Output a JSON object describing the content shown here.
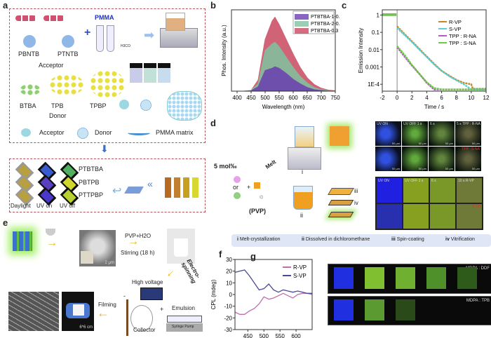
{
  "panels": {
    "a": "a",
    "b": "b",
    "c": "c",
    "d": "d",
    "e": "e",
    "f": "f",
    "g": "g"
  },
  "panel_a": {
    "pmma": "PMMA",
    "pbntb": "PBNTB",
    "ptntb": "PTNTB",
    "acceptor": "Acceptor",
    "btba": "BTBA",
    "tpb": "TPB",
    "tpbp": "TPBP",
    "donor": "Donor",
    "formula": "H3CO",
    "legend_acceptor": "Acceptor",
    "legend_donor": "Donor",
    "legend_matrix": "PMMA matrix",
    "rows": [
      "PTBTBA",
      "PBTPB",
      "PTTPBP"
    ],
    "cols": [
      "Daylight",
      "UV on",
      "UV off"
    ],
    "colors": {
      "frame": "#b5555a",
      "arrow": "#3b6fc8"
    }
  },
  "panel_d": {
    "dopant": "5 mol‰",
    "or": "or",
    "plus": "+",
    "melt": "Melt",
    "pvp": "(PVP)",
    "step_i": "i",
    "step_ii": "ii",
    "step_iii": "iii",
    "step_iv": "iv",
    "micro_labels": [
      "UV ON",
      "UV OFF 1 s",
      "6 s",
      "5 s TPP : R-NA"
    ],
    "micro_bottom": "TPP : S-NA",
    "scale": "50 μm",
    "photo_labels": [
      "UV ON",
      "UV OFF 2 s",
      "6 s",
      "10 s R-VP"
    ],
    "photo_bottom": "S-VP",
    "legend": [
      {
        "num": "i",
        "text": "Melt-crystallization"
      },
      {
        "num": "ii",
        "text": "Dissolved in dichloromethane"
      },
      {
        "num": "iii",
        "text": "Spin-coating"
      },
      {
        "num": "iv",
        "text": "Vitrification"
      }
    ]
  },
  "panel_e": {
    "pvp": "PVP+H2O",
    "stirring": "Stirring (18 h)",
    "scale": "2 μm",
    "electro": "Electro-spinning",
    "high_voltage": "High voltage",
    "minus": "-",
    "plus": "+",
    "emulsion": "Emulsion",
    "syringe": "Syringe Pump",
    "collector": "Collector",
    "filming": "Filming",
    "size": "6*6 cm"
  },
  "panel_g": {
    "row1": "MDPA : DDF",
    "row2": "MDPA : TPB"
  },
  "chart_data": [
    {
      "id": "b",
      "type": "area",
      "xlabel": "Wavelength (nm)",
      "ylabel": "Phos. Intensity (a.u.)",
      "xlim": [
        380,
        750
      ],
      "ylim": [
        0,
        1.1
      ],
      "xticks": [
        400,
        450,
        500,
        550,
        600,
        650,
        700,
        750
      ],
      "stacked": true,
      "x": [
        400,
        425,
        450,
        475,
        500,
        525,
        535,
        550,
        575,
        600,
        625,
        650,
        675,
        700,
        725,
        750
      ],
      "series": [
        {
          "name": "PTBTBA-1-0.3",
          "color": "#6a3fb0",
          "values": [
            0,
            0,
            0.005,
            0.06,
            0.28,
            0.31,
            0.33,
            0.31,
            0.24,
            0.16,
            0.1,
            0.05,
            0.02,
            0.01,
            0,
            0
          ]
        },
        {
          "name": "PTBTBA-2-0.3",
          "color": "#7fc4a0",
          "values": [
            0,
            0,
            0.01,
            0.1,
            0.55,
            0.64,
            0.66,
            0.6,
            0.46,
            0.32,
            0.2,
            0.11,
            0.05,
            0.02,
            0.01,
            0
          ]
        },
        {
          "name": "PTBTBA-0.3",
          "color": "#c9485f",
          "values": [
            0,
            0,
            0.01,
            0.15,
            0.7,
            0.95,
            1.0,
            0.9,
            0.7,
            0.5,
            0.32,
            0.18,
            0.09,
            0.04,
            0.015,
            0.005
          ]
        }
      ],
      "legend": "top-right"
    },
    {
      "id": "c",
      "type": "line",
      "xlabel": "Time / s",
      "ylabel": "Emission Intensity",
      "xlim": [
        -2,
        12
      ],
      "ylim": [
        4e-05,
        2
      ],
      "yscale": "log",
      "xticks": [
        -2,
        0,
        2,
        4,
        6,
        8,
        10,
        12
      ],
      "yticks": [
        {
          "v": 1,
          "l": "1"
        },
        {
          "v": 0.1,
          "l": "0.1"
        },
        {
          "v": 0.01,
          "l": "0.01"
        },
        {
          "v": 0.001,
          "l": "0.001"
        },
        {
          "v": 0.0001,
          "l": "1E-4"
        }
      ],
      "x_pre": [
        -2,
        -0.1
      ],
      "x": [
        0,
        1,
        2,
        3,
        4,
        5,
        6,
        7,
        8,
        9,
        10,
        10.2,
        12
      ],
      "series": [
        {
          "name": "R-VP",
          "color": "#c8882a",
          "pre": [
            1.1,
            1.1
          ],
          "values": [
            0.22,
            0.08,
            0.03,
            0.011,
            0.004,
            0.0015,
            0.0006,
            0.00032,
            0.00018,
            0.00012,
            0.0001,
            5.5e-05,
            5.5e-05
          ]
        },
        {
          "name": "S-VP",
          "color": "#5cd0d8",
          "pre": [
            1.0,
            1.0
          ],
          "values": [
            0.18,
            0.07,
            0.028,
            0.01,
            0.0038,
            0.0014,
            0.0006,
            0.0003,
            0.00017,
            0.0001,
            5e-05,
            5e-05,
            5e-05
          ]
        },
        {
          "name": "TPP : R-NA",
          "color": "#b05cc0",
          "pre": [
            1.0,
            1.0
          ],
          "values": [
            0.014,
            0.004,
            0.0012,
            0.0004,
            0.00012,
            5e-05,
            5e-05,
            5e-05,
            5e-05,
            5e-05,
            5e-05,
            5e-05,
            5e-05
          ]
        },
        {
          "name": "TPP : S-NA",
          "color": "#6ccc40",
          "pre": [
            1.0,
            1.0
          ],
          "values": [
            0.016,
            0.005,
            0.0013,
            0.0004,
            0.00013,
            6e-05,
            5e-05,
            5e-05,
            5e-05,
            5e-05,
            5e-05,
            5e-05,
            5e-05
          ]
        }
      ],
      "legend": "top-right"
    },
    {
      "id": "f",
      "type": "line",
      "xlabel": "Wavelength / nm",
      "ylabel": "CPL (mdeg)",
      "xlim": [
        410,
        650
      ],
      "ylim": [
        -30,
        30
      ],
      "xticks": [
        450,
        500,
        550,
        600
      ],
      "yticks": [
        -30,
        -20,
        -10,
        0,
        10,
        20,
        30
      ],
      "x": [
        410,
        425,
        440,
        455,
        470,
        485,
        500,
        515,
        530,
        545,
        560,
        575,
        590,
        605,
        620,
        635,
        650
      ],
      "series": [
        {
          "name": "R-VP",
          "color": "#c070a8",
          "values": [
            -15,
            -17,
            -17,
            -14,
            -12,
            -8,
            -2,
            -4,
            -3,
            -1,
            1,
            -1,
            -3,
            0,
            1,
            1,
            0
          ]
        },
        {
          "name": "S-VP",
          "color": "#4a4a9a",
          "values": [
            19,
            20,
            21,
            16,
            10,
            4,
            5,
            9,
            4,
            2,
            4,
            3,
            2,
            3,
            2,
            1,
            1
          ]
        }
      ],
      "legend": "top-right"
    }
  ]
}
